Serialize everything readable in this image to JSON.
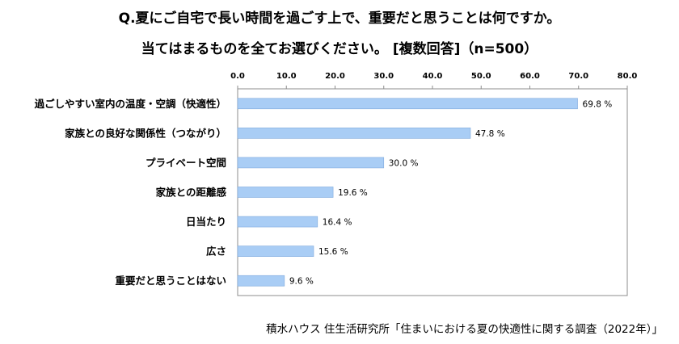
{
  "chart_data": {
    "type": "bar",
    "orientation": "horizontal",
    "title_lines": [
      "Q.夏にご自宅で長い時間を過ごす上で、重要だと思うことは何ですか。",
      "当てはまるものを全てお選びください。 [複数回答]（n=500）"
    ],
    "categories": [
      "過ごしやすい室内の温度・空調（快適性）",
      "家族との良好な関係性（つながり）",
      "プライベート空間",
      "家族との距離感",
      "日当たり",
      "広さ",
      "重要だと思うことはない"
    ],
    "values": [
      69.8,
      47.8,
      30.0,
      19.6,
      16.4,
      15.6,
      9.6
    ],
    "data_labels": [
      "69.8 %",
      "47.8 %",
      "30.0 %",
      "19.6 %",
      "16.4 %",
      "15.6 %",
      "9.6 %"
    ],
    "x_ticks": [
      "0.0",
      "10.0",
      "20.0",
      "30.0",
      "40.0",
      "50.0",
      "60.0",
      "70.0",
      "80.0"
    ],
    "xlim": [
      0,
      80
    ],
    "axis_position": "top",
    "grid": false,
    "bar_color": "#a9cdf5",
    "bar_edge_color": "#7fa9dc"
  },
  "source": "積水ハウス 住生活研究所「住まいにおける夏の快適性に関する調査（2022年）」"
}
